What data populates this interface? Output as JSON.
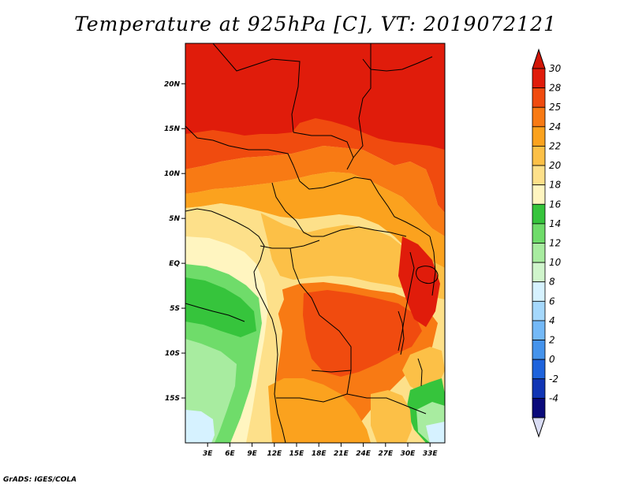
{
  "title": "Temperature at 925hPa [C], VT: 2019072121",
  "credit": "GrADS: IGES/COLA",
  "map": {
    "lon_range": [
      0,
      35
    ],
    "lat_range": [
      -20,
      24.5
    ],
    "lat_ticks": [
      {
        "value": 20,
        "label": "20N"
      },
      {
        "value": 15,
        "label": "15N"
      },
      {
        "value": 10,
        "label": "10N"
      },
      {
        "value": 5,
        "label": "5N"
      },
      {
        "value": 0,
        "label": "EQ"
      },
      {
        "value": -5,
        "label": "5S"
      },
      {
        "value": -10,
        "label": "10S"
      },
      {
        "value": -15,
        "label": "15S"
      }
    ],
    "lon_ticks": [
      {
        "value": 3,
        "label": "3E"
      },
      {
        "value": 6,
        "label": "6E"
      },
      {
        "value": 9,
        "label": "9E"
      },
      {
        "value": 12,
        "label": "12E"
      },
      {
        "value": 15,
        "label": "15E"
      },
      {
        "value": 18,
        "label": "18E"
      },
      {
        "value": 21,
        "label": "21E"
      },
      {
        "value": 24,
        "label": "24E"
      },
      {
        "value": 27,
        "label": "27E"
      },
      {
        "value": 30,
        "label": "30E"
      },
      {
        "value": 33,
        "label": "33E"
      }
    ]
  },
  "colorbar": {
    "labels": [
      "30",
      "28",
      "25",
      "24",
      "22",
      "20",
      "18",
      "16",
      "14",
      "12",
      "10",
      "8",
      "6",
      "4",
      "2",
      "0",
      "-2",
      "-4"
    ],
    "colors": [
      "#e01c0b",
      "#f04b0f",
      "#f87a14",
      "#fba21e",
      "#fcc047",
      "#fde08a",
      "#fff5c0",
      "#36c43c",
      "#6fdc6a",
      "#a8eca0",
      "#d0f5cc",
      "#d6f2ff",
      "#a5d8fc",
      "#74b9f7",
      "#4593ec",
      "#1e63dc",
      "#1135b4",
      "#0a0a7a"
    ],
    "top_color": "#d21608",
    "bottom_color": "#d9dcf4"
  }
}
